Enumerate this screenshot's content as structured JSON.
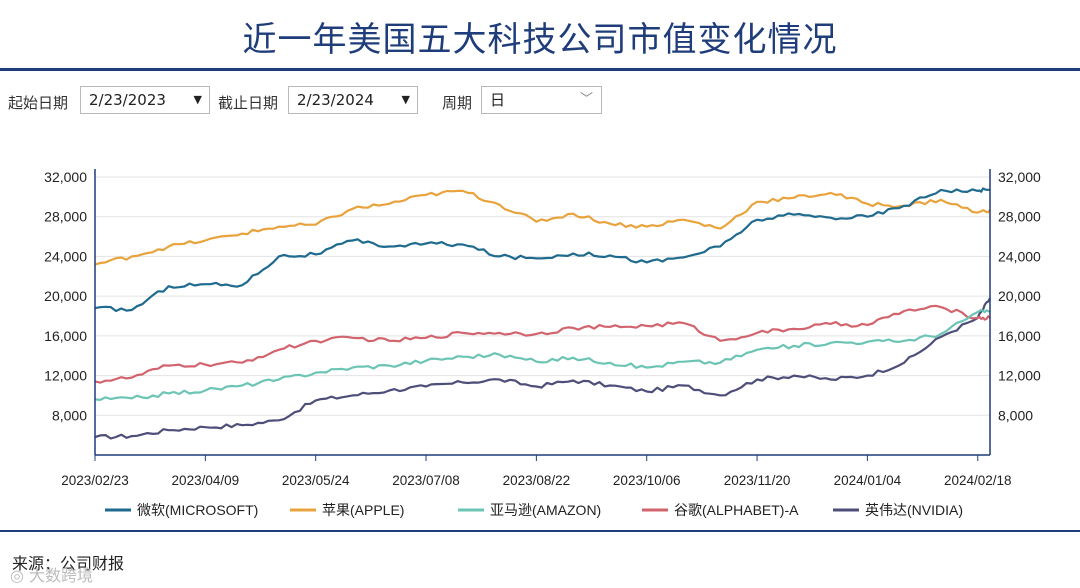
{
  "header": {
    "title": "近一年美国五大科技公司市值变化情况"
  },
  "controls": {
    "start_label": "起始日期",
    "start_value": "2/23/2023",
    "end_label": "截止日期",
    "end_value": "2/23/2024",
    "period_label": "周期",
    "period_value": "日"
  },
  "footer": {
    "source": "来源：公司财报",
    "watermark": "◎ 大数跨境"
  },
  "colors": {
    "microsoft": "#1f6a8f",
    "apple": "#e8a33d",
    "amazon": "#6cc4b4",
    "alphabet": "#d2646e",
    "nvidia": "#4d4f7a",
    "axis": "#1f3d7a",
    "grid": "#e3e3e3"
  },
  "chart_data": {
    "type": "line",
    "title": "",
    "xlabel": "",
    "ylabel": "",
    "ylim": [
      4000,
      32000
    ],
    "y_ticks": [
      "32,000",
      "28,000",
      "24,000",
      "20,000",
      "16,000",
      "12,000",
      "8,000"
    ],
    "x_ticks": [
      "2023/02/23",
      "2023/04/09",
      "2023/05/24",
      "2023/07/08",
      "2023/08/22",
      "2023/10/06",
      "2023/11/20",
      "2024/01/04",
      "2024/02/18"
    ],
    "x": [
      "2023/02/23",
      "2023/03/10",
      "2023/03/25",
      "2023/04/09",
      "2023/04/24",
      "2023/05/09",
      "2023/05/24",
      "2023/06/08",
      "2023/06/23",
      "2023/07/08",
      "2023/07/23",
      "2023/08/07",
      "2023/08/22",
      "2023/09/06",
      "2023/09/21",
      "2023/10/06",
      "2023/10/21",
      "2023/11/05",
      "2023/11/20",
      "2023/12/05",
      "2023/12/20",
      "2024/01/04",
      "2024/01/19",
      "2024/02/03",
      "2024/02/18",
      "2024/02/23"
    ],
    "legend_position": "bottom",
    "series": [
      {
        "key": "microsoft",
        "name": "微软(MICROSOFT)",
        "values": [
          18800,
          18600,
          21000,
          21200,
          21100,
          24000,
          24200,
          25600,
          25000,
          25300,
          25200,
          24000,
          23800,
          24300,
          24100,
          23400,
          23900,
          25000,
          27700,
          28200,
          27900,
          28000,
          29100,
          30700,
          30600,
          30700
        ]
      },
      {
        "key": "apple",
        "name": "苹果(APPLE)",
        "values": [
          23200,
          24000,
          25000,
          25600,
          26300,
          27000,
          27200,
          28800,
          29300,
          30200,
          30600,
          29200,
          27500,
          28300,
          27300,
          27000,
          27700,
          26800,
          29500,
          29900,
          30400,
          29300,
          29100,
          29700,
          28400,
          28700
        ]
      },
      {
        "key": "amazon",
        "name": "亚马逊(AMAZON)",
        "values": [
          9600,
          9700,
          10200,
          10500,
          11000,
          11600,
          12300,
          12800,
          13000,
          13500,
          13900,
          14100,
          13400,
          13800,
          13300,
          12800,
          13400,
          13300,
          14600,
          15000,
          15300,
          15400,
          15500,
          16200,
          18400,
          18500
        ]
      },
      {
        "key": "alphabet",
        "name": "谷歌(ALPHABET)-A",
        "values": [
          11400,
          11800,
          13000,
          13100,
          13300,
          14600,
          15500,
          15800,
          15500,
          15800,
          16300,
          16300,
          16200,
          16800,
          16900,
          17000,
          17300,
          15500,
          16300,
          16700,
          17200,
          17100,
          18500,
          18900,
          17800,
          17800
        ]
      },
      {
        "key": "nvidia",
        "name": "英伟达(NVIDIA)",
        "values": [
          5800,
          5900,
          6500,
          6800,
          7000,
          7500,
          9500,
          10000,
          10500,
          10900,
          11300,
          11600,
          10900,
          11500,
          11000,
          10400,
          11000,
          10000,
          11600,
          12000,
          11600,
          12000,
          13300,
          15900,
          17800,
          19800
        ]
      }
    ]
  }
}
